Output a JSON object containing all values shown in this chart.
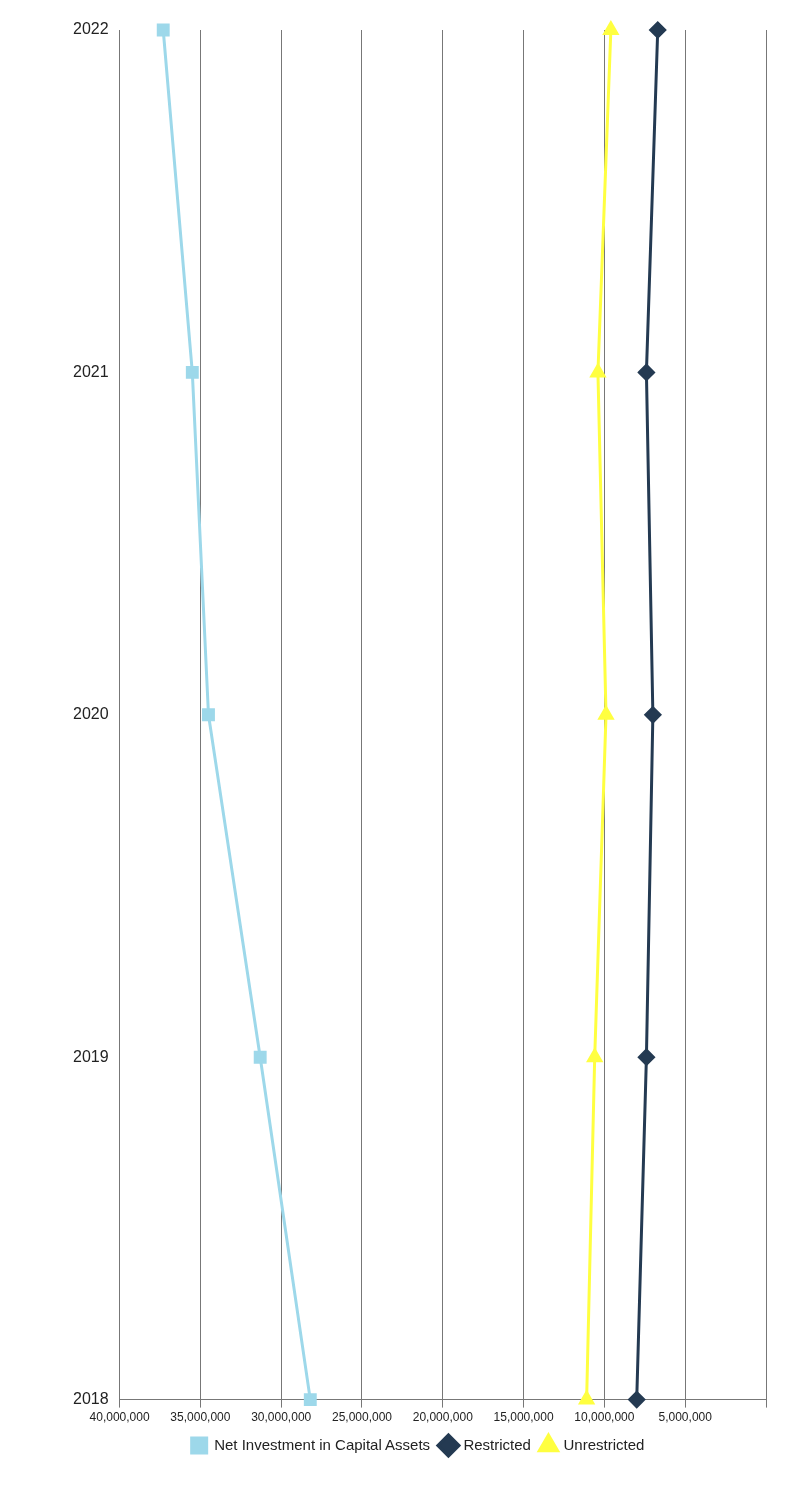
{
  "chart_data": {
    "type": "line",
    "orientation": "horizontal",
    "categories": [
      "2022",
      "2021",
      "2020",
      "2019",
      "2018"
    ],
    "series": [
      {
        "name": "Net Investment in Capital Assets",
        "color": "#9dd8ea",
        "marker": "square",
        "values": [
          37300000,
          35500000,
          34500000,
          31300000,
          28200000
        ]
      },
      {
        "name": "Restricted",
        "color": "#243a52",
        "marker": "diamond",
        "values": [
          6700000,
          7400000,
          7000000,
          7400000,
          8000000
        ]
      },
      {
        "name": "Unrestricted",
        "color": "#ffff40",
        "marker": "triangle",
        "values": [
          9600000,
          10400000,
          9900000,
          10600000,
          11100000
        ]
      }
    ],
    "xlim": [
      40000000,
      0
    ],
    "xticks": [
      {
        "value": 0,
        "label": null
      },
      {
        "value": 5000000,
        "label": "5,000,000"
      },
      {
        "value": 10000000,
        "label": "10,000,000"
      },
      {
        "value": 15000000,
        "label": "15,000,000"
      },
      {
        "value": 20000000,
        "label": "20,000,000"
      },
      {
        "value": 25000000,
        "label": "25,000,000"
      },
      {
        "value": 30000000,
        "label": "30,000,000"
      },
      {
        "value": 35000000,
        "label": "35,000,000"
      },
      {
        "value": 40000000,
        "label": "40,000,000"
      }
    ],
    "grid": "x",
    "legend": "bottom",
    "line_style": "solid"
  }
}
